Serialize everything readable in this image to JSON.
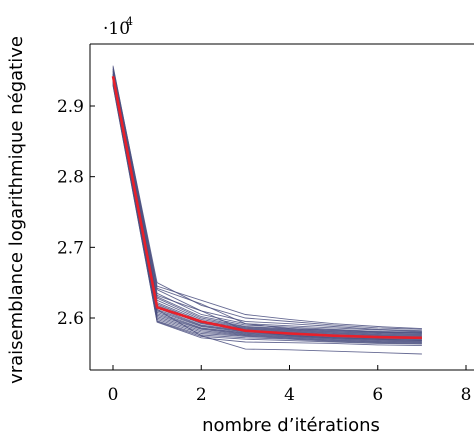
{
  "chart_data": {
    "type": "line",
    "title": "",
    "xlabel": "nombre d’itérations",
    "ylabel": "vraisemblance logarithmique négative",
    "y_multiplier_base": "·10",
    "y_multiplier_exp": "4",
    "xlim": [
      -0.5,
      8
    ],
    "ylim": [
      2.545,
      2.975
    ],
    "xticks": [
      0,
      2,
      4,
      6,
      8
    ],
    "yticks": [
      2.6,
      2.7,
      2.8,
      2.9
    ],
    "xtick_labels": [
      "0",
      "2",
      "4",
      "6",
      "8"
    ],
    "ytick_labels": [
      "2.6",
      "2.7",
      "2.8",
      "2.9"
    ],
    "grid": false,
    "background_runs_color": "#4b5080",
    "mean_color": "#e8202a",
    "x": [
      0,
      1,
      2,
      3,
      4,
      5,
      6,
      7
    ],
    "background_runs": [
      [
        2.957,
        2.645,
        2.625,
        2.605,
        2.598,
        2.592,
        2.588,
        2.585
      ],
      [
        2.955,
        2.65,
        2.618,
        2.6,
        2.595,
        2.59,
        2.586,
        2.584
      ],
      [
        2.952,
        2.64,
        2.61,
        2.595,
        2.592,
        2.588,
        2.584,
        2.582
      ],
      [
        2.95,
        2.635,
        2.605,
        2.592,
        2.589,
        2.586,
        2.583,
        2.581
      ],
      [
        2.948,
        2.63,
        2.602,
        2.59,
        2.587,
        2.584,
        2.581,
        2.58
      ],
      [
        2.946,
        2.628,
        2.6,
        2.588,
        2.585,
        2.583,
        2.58,
        2.579
      ],
      [
        2.945,
        2.625,
        2.598,
        2.587,
        2.584,
        2.581,
        2.579,
        2.578
      ],
      [
        2.944,
        2.622,
        2.596,
        2.586,
        2.583,
        2.58,
        2.578,
        2.577
      ],
      [
        2.943,
        2.62,
        2.594,
        2.585,
        2.582,
        2.579,
        2.577,
        2.576
      ],
      [
        2.942,
        2.618,
        2.593,
        2.584,
        2.581,
        2.578,
        2.576,
        2.575
      ],
      [
        2.941,
        2.616,
        2.592,
        2.583,
        2.58,
        2.577,
        2.575,
        2.574
      ],
      [
        2.94,
        2.614,
        2.59,
        2.582,
        2.579,
        2.576,
        2.574,
        2.573
      ],
      [
        2.939,
        2.612,
        2.589,
        2.581,
        2.578,
        2.575,
        2.573,
        2.572
      ],
      [
        2.938,
        2.61,
        2.588,
        2.58,
        2.577,
        2.574,
        2.572,
        2.571
      ],
      [
        2.937,
        2.608,
        2.586,
        2.579,
        2.576,
        2.573,
        2.571,
        2.57
      ],
      [
        2.936,
        2.606,
        2.585,
        2.578,
        2.575,
        2.572,
        2.57,
        2.569
      ],
      [
        2.935,
        2.604,
        2.584,
        2.577,
        2.574,
        2.571,
        2.569,
        2.568
      ],
      [
        2.934,
        2.602,
        2.582,
        2.576,
        2.573,
        2.57,
        2.568,
        2.567
      ],
      [
        2.933,
        2.6,
        2.58,
        2.575,
        2.572,
        2.569,
        2.567,
        2.566
      ],
      [
        2.932,
        2.598,
        2.578,
        2.574,
        2.571,
        2.568,
        2.566,
        2.565
      ],
      [
        2.931,
        2.596,
        2.576,
        2.572,
        2.57,
        2.567,
        2.565,
        2.564
      ],
      [
        2.93,
        2.595,
        2.574,
        2.57,
        2.568,
        2.566,
        2.564,
        2.563
      ],
      [
        2.929,
        2.594,
        2.572,
        2.566,
        2.565,
        2.564,
        2.562,
        2.561
      ],
      [
        2.946,
        2.612,
        2.575,
        2.556,
        2.555,
        2.553,
        2.551,
        2.549
      ],
      [
        2.95,
        2.632,
        2.61,
        2.582,
        2.575,
        2.572,
        2.57,
        2.568
      ],
      [
        2.953,
        2.642,
        2.62,
        2.592,
        2.585,
        2.582,
        2.58,
        2.579
      ]
    ],
    "mean_series": [
      2.942,
      2.615,
      2.595,
      2.582,
      2.578,
      2.575,
      2.573,
      2.572
    ]
  }
}
